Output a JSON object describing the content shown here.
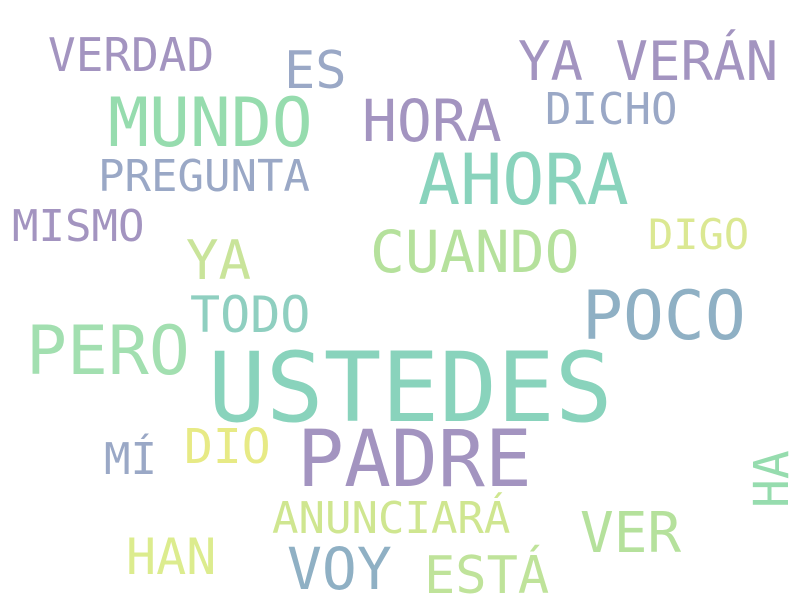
{
  "colors": {
    "background": "#ffffff",
    "lavender": "#a394c0",
    "periwinkle": "#9aa8c6",
    "steel_blue": "#8fb0c4",
    "teal": "#89d3bc",
    "mint": "#96dcae",
    "light_green": "#b5e19c",
    "lime": "#cfe690",
    "yellow": "#e7ea85"
  },
  "words": [
    {
      "text": "VERDAD",
      "color": "#a394c0"
    },
    {
      "text": "ES",
      "color": "#9aa8c6"
    },
    {
      "text": "YA VERÁN",
      "color": "#a394c0"
    },
    {
      "text": "MUNDO",
      "color": "#96dcae"
    },
    {
      "text": "HORA",
      "color": "#a394c0"
    },
    {
      "text": "DICHO",
      "color": "#9aa8c6"
    },
    {
      "text": "PREGUNTA",
      "color": "#9aa8c6"
    },
    {
      "text": "AHORA",
      "color": "#89d3bc"
    },
    {
      "text": "MISMO",
      "color": "#a394c0"
    },
    {
      "text": "DIGO",
      "color": "#dbe892"
    },
    {
      "text": "YA",
      "color": "#c9e49a"
    },
    {
      "text": "CUANDO",
      "color": "#b5e19c"
    },
    {
      "text": "TODO",
      "color": "#8fcfc0"
    },
    {
      "text": "POCO",
      "color": "#8fb0c4"
    },
    {
      "text": "PERO",
      "color": "#a2dfb0"
    },
    {
      "text": "USTEDES",
      "color": "#89d3bc"
    },
    {
      "text": "MÍ",
      "color": "#9aa8c6"
    },
    {
      "text": "DIO",
      "color": "#e7ea85"
    },
    {
      "text": "PADRE",
      "color": "#a394c0"
    },
    {
      "text": "HA",
      "color": "#96dcae"
    },
    {
      "text": "ANUNCIARÁ",
      "color": "#cfe690"
    },
    {
      "text": "VER",
      "color": "#b5e19c"
    },
    {
      "text": "HAN",
      "color": "#dcec8e"
    },
    {
      "text": "VOY",
      "color": "#8fb0c4"
    },
    {
      "text": "ESTÁ",
      "color": "#bfe39a"
    }
  ]
}
